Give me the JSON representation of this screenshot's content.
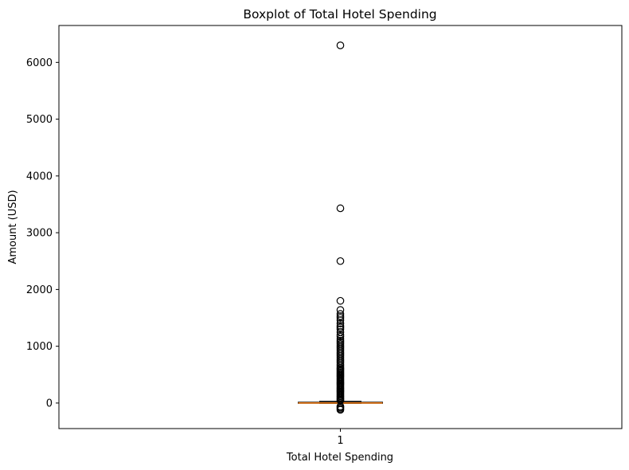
{
  "chart_data": {
    "type": "boxplot",
    "title": "Boxplot of Total Hotel Spending",
    "xlabel": "Total Hotel Spending",
    "ylabel": "Amount (USD)",
    "categories": [
      "1"
    ],
    "ylim": [
      -450,
      6650
    ],
    "yticks": [
      0,
      1000,
      2000,
      3000,
      4000,
      5000,
      6000
    ],
    "grid": false,
    "box": {
      "q1": -5,
      "median": 0,
      "q3": 15,
      "whisker_low": -5,
      "whisker_high": 30
    },
    "outliers": [
      6300,
      3430,
      2500,
      1800,
      1640,
      1570,
      1530,
      1500,
      1460,
      1400,
      1360,
      1330,
      1300,
      1250,
      1200,
      1170,
      1130,
      1100,
      1070,
      1040,
      1010,
      980,
      950,
      920,
      890,
      860,
      830,
      800,
      770,
      740,
      710,
      680,
      650,
      620,
      600,
      580,
      560,
      540,
      520,
      500,
      480,
      460,
      440,
      420,
      400,
      380,
      360,
      340,
      320,
      300,
      280,
      260,
      240,
      220,
      200,
      180,
      160,
      140,
      120,
      100,
      80,
      60,
      45,
      -60,
      -80,
      -100,
      -120
    ],
    "colors": {
      "median": "#ff7f0e",
      "box": "#000000",
      "outlier": "#000000"
    }
  }
}
